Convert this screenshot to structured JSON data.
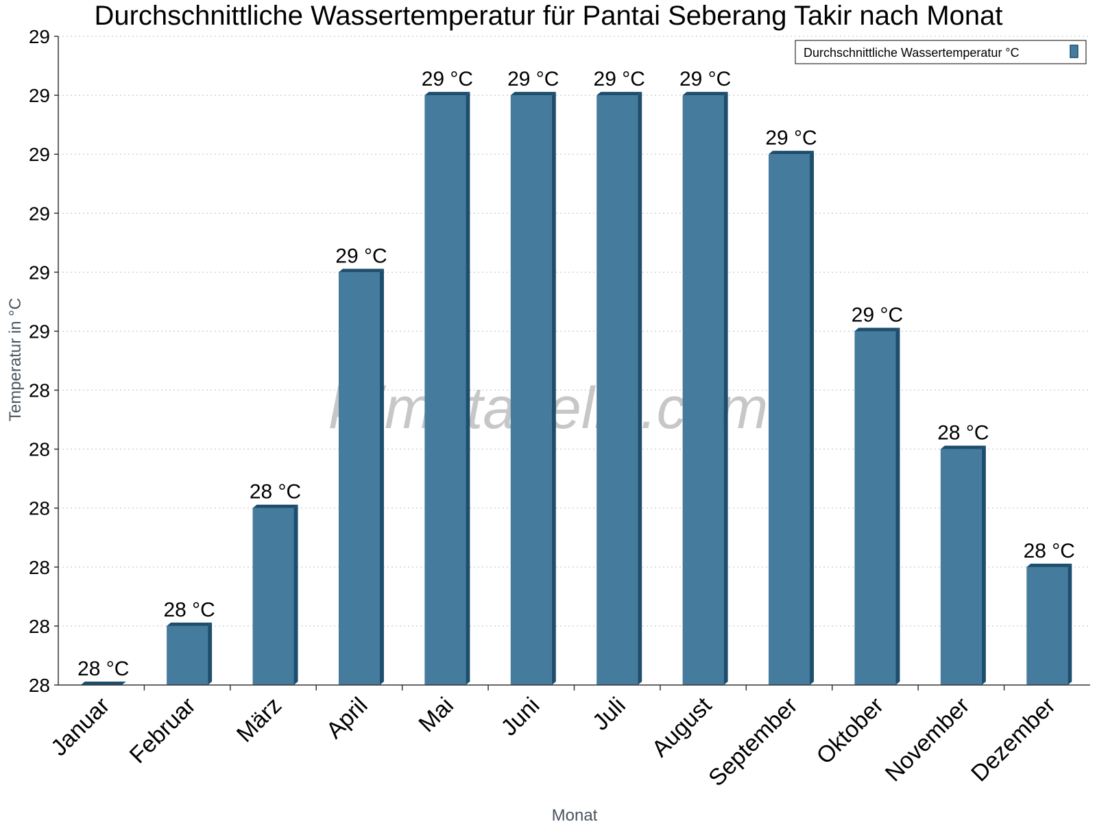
{
  "chart_data": {
    "type": "bar",
    "title": "Durchschnittliche Wassertemperatur für Pantai Seberang Takir nach Monat",
    "xlabel": "Monat",
    "ylabel": "Temperatur in °C",
    "categories": [
      "Januar",
      "Februar",
      "März",
      "April",
      "Mai",
      "Juni",
      "Juli",
      "August",
      "September",
      "Oktober",
      "November",
      "Dezember"
    ],
    "series": [
      {
        "name": "Durchschnittliche Wassertemperatur °C",
        "values": [
          28.0,
          28.1,
          28.3,
          28.7,
          29.0,
          29.0,
          29.0,
          29.0,
          28.9,
          28.6,
          28.4,
          28.2
        ],
        "labels": [
          "28 °C",
          "28 °C",
          "28 °C",
          "29 °C",
          "29 °C",
          "29 °C",
          "29 °C",
          "29 °C",
          "29 °C",
          "29 °C",
          "28 °C",
          "28 °C"
        ]
      }
    ],
    "ylim": [
      28.0,
      29.1
    ],
    "yticks": [
      28.0,
      28.1,
      28.2,
      28.3,
      28.4,
      28.5,
      28.6,
      28.7,
      28.8,
      28.9,
      29.0,
      29.1
    ],
    "ytick_labels": [
      "28",
      "28",
      "28",
      "28",
      "28",
      "28",
      "29",
      "29",
      "29",
      "29",
      "29",
      "29"
    ],
    "grid": true,
    "legend_position": "top-right",
    "colors": {
      "bar": "#457b9d",
      "bar_side": "#1d4e6e",
      "bar_top": "#1d4e6e"
    }
  },
  "watermark": "klimatabelle.com"
}
